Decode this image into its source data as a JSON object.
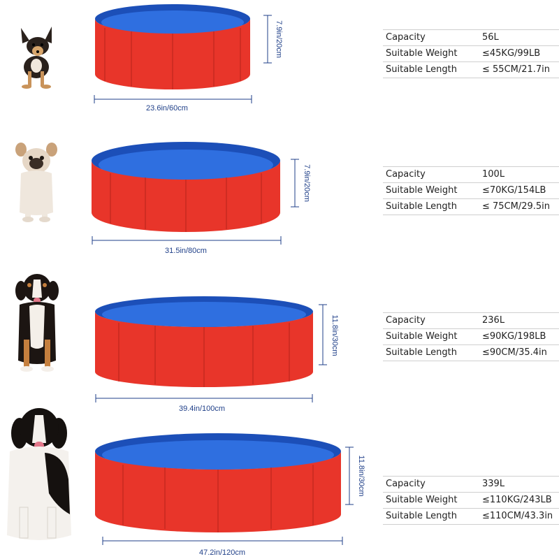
{
  "pools": [
    {
      "dog": "chihuahua-icon",
      "diameter_label": "23.6in/60cm",
      "height_label": "7.9in/20cm",
      "specs": [
        {
          "label": "Capacity",
          "value": "56L"
        },
        {
          "label": "Suitable Weight",
          "value": "≤45KG/99LB"
        },
        {
          "label": "Suitable Length",
          "value": "≤ 55CM/21.7in"
        }
      ]
    },
    {
      "dog": "french-bulldog-icon",
      "diameter_label": "31.5in/80cm",
      "height_label": "7.9in/20cm",
      "specs": [
        {
          "label": "Capacity",
          "value": "100L"
        },
        {
          "label": "Suitable Weight",
          "value": "≤70KG/154LB"
        },
        {
          "label": "Suitable Length",
          "value": "≤ 75CM/29.5in"
        }
      ]
    },
    {
      "dog": "bernese-dog-icon",
      "diameter_label": "39.4in/100cm",
      "height_label": "11.8in/30cm",
      "specs": [
        {
          "label": "Capacity",
          "value": "236L"
        },
        {
          "label": "Suitable Weight",
          "value": "≤90KG/198LB"
        },
        {
          "label": "Suitable Length",
          "value": "≤90CM/35.4in"
        }
      ]
    },
    {
      "dog": "newfoundland-dog-icon",
      "diameter_label": "47.2in/120cm",
      "height_label": "11.8in/30cm",
      "specs": [
        {
          "label": "Capacity",
          "value": "339L"
        },
        {
          "label": "Suitable Weight",
          "value": "≤110KG/243LB"
        },
        {
          "label": "Suitable Length",
          "value": "≤110CM/43.3in"
        }
      ]
    }
  ],
  "colors": {
    "pool_red": "#e8352a",
    "pool_red_dark": "#b5231b",
    "pool_blue": "#2f6fe0",
    "pool_blue_dark": "#1c4fb8",
    "dimension": "#1f3f88"
  }
}
